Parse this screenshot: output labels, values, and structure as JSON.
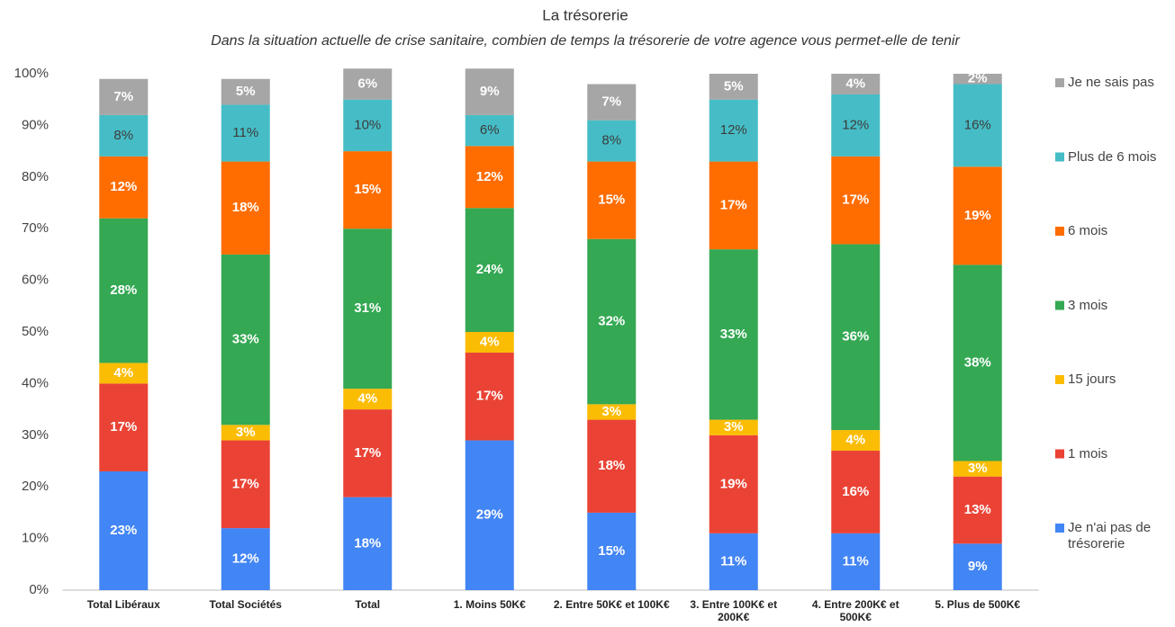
{
  "chart_data": {
    "type": "stacked_bar",
    "title": "La trésorerie",
    "subtitle": "Dans la situation actuelle de crise sanitaire, combien de temps la trésorerie de votre agence vous permet-elle de tenir",
    "categories": [
      "Total Libéraux",
      "Total Sociétés",
      "Total",
      "1. Moins 50K€",
      "2. Entre 50K€ et 100K€",
      "3. Entre 100K€ et 200K€",
      "4. Entre 200K€ et 500K€",
      "5. Plus de 500K€"
    ],
    "ylim": [
      0,
      100
    ],
    "yticks": [
      {
        "value": 0,
        "label": "0%"
      },
      {
        "value": 10,
        "label": "10%"
      },
      {
        "value": 20,
        "label": "20%"
      },
      {
        "value": 30,
        "label": "30%"
      },
      {
        "value": 40,
        "label": "40%"
      },
      {
        "value": 50,
        "label": "50%"
      },
      {
        "value": 60,
        "label": "60%"
      },
      {
        "value": 70,
        "label": "70%"
      },
      {
        "value": 80,
        "label": "80%"
      },
      {
        "value": 90,
        "label": "90%"
      },
      {
        "value": 100,
        "label": "100%"
      }
    ],
    "grid": false,
    "legend": "right",
    "series": [
      {
        "name": "Je n'ai pas de trésorerie",
        "color": "#4285f4",
        "label_color": "#ffffff",
        "values": [
          23,
          12,
          18,
          29,
          15,
          11,
          11,
          9
        ],
        "value_labels": [
          "23%",
          "12%",
          "18%",
          "29%",
          "15%",
          "11%",
          "11%",
          "9%"
        ]
      },
      {
        "name": "1 mois",
        "color": "#ea4335",
        "label_color": "#ffffff",
        "values": [
          17,
          17,
          17,
          17,
          18,
          19,
          16,
          13
        ],
        "value_labels": [
          "17%",
          "17%",
          "17%",
          "17%",
          "18%",
          "19%",
          "16%",
          "13%"
        ]
      },
      {
        "name": "15 jours",
        "color": "#fbbc04",
        "label_color": "#ffffff",
        "values": [
          4,
          3,
          4,
          4,
          3,
          3,
          4,
          3
        ],
        "value_labels": [
          "4%",
          "3%",
          "4%",
          "4%",
          "3%",
          "3%",
          "4%",
          "3%"
        ]
      },
      {
        "name": "3 mois",
        "color": "#34a853",
        "label_color": "#ffffff",
        "values": [
          28,
          33,
          31,
          24,
          32,
          33,
          36,
          38
        ],
        "value_labels": [
          "28%",
          "33%",
          "31%",
          "24%",
          "32%",
          "33%",
          "36%",
          "38%"
        ]
      },
      {
        "name": "6 mois",
        "color": "#ff6d01",
        "label_color": "#ffffff",
        "values": [
          12,
          18,
          15,
          12,
          15,
          17,
          17,
          19
        ],
        "value_labels": [
          "12%",
          "18%",
          "15%",
          "12%",
          "15%",
          "17%",
          "17%",
          "19%"
        ]
      },
      {
        "name": "Plus de 6 mois",
        "color": "#46bdc6",
        "label_color": "#3c3c3c",
        "values": [
          8,
          11,
          10,
          6,
          8,
          12,
          12,
          16
        ],
        "value_labels": [
          "8%",
          "11%",
          "10%",
          "6%",
          "8%",
          "12%",
          "12%",
          "16%"
        ]
      },
      {
        "name": "Je ne sais pas",
        "color": "#a6a6a6",
        "label_color": "#ffffff",
        "values": [
          7,
          5,
          6,
          9,
          7,
          5,
          4,
          2
        ],
        "value_labels": [
          "7%",
          "5%",
          "6%",
          "9%",
          "7%",
          "5%",
          "4%",
          "2%"
        ]
      }
    ]
  }
}
